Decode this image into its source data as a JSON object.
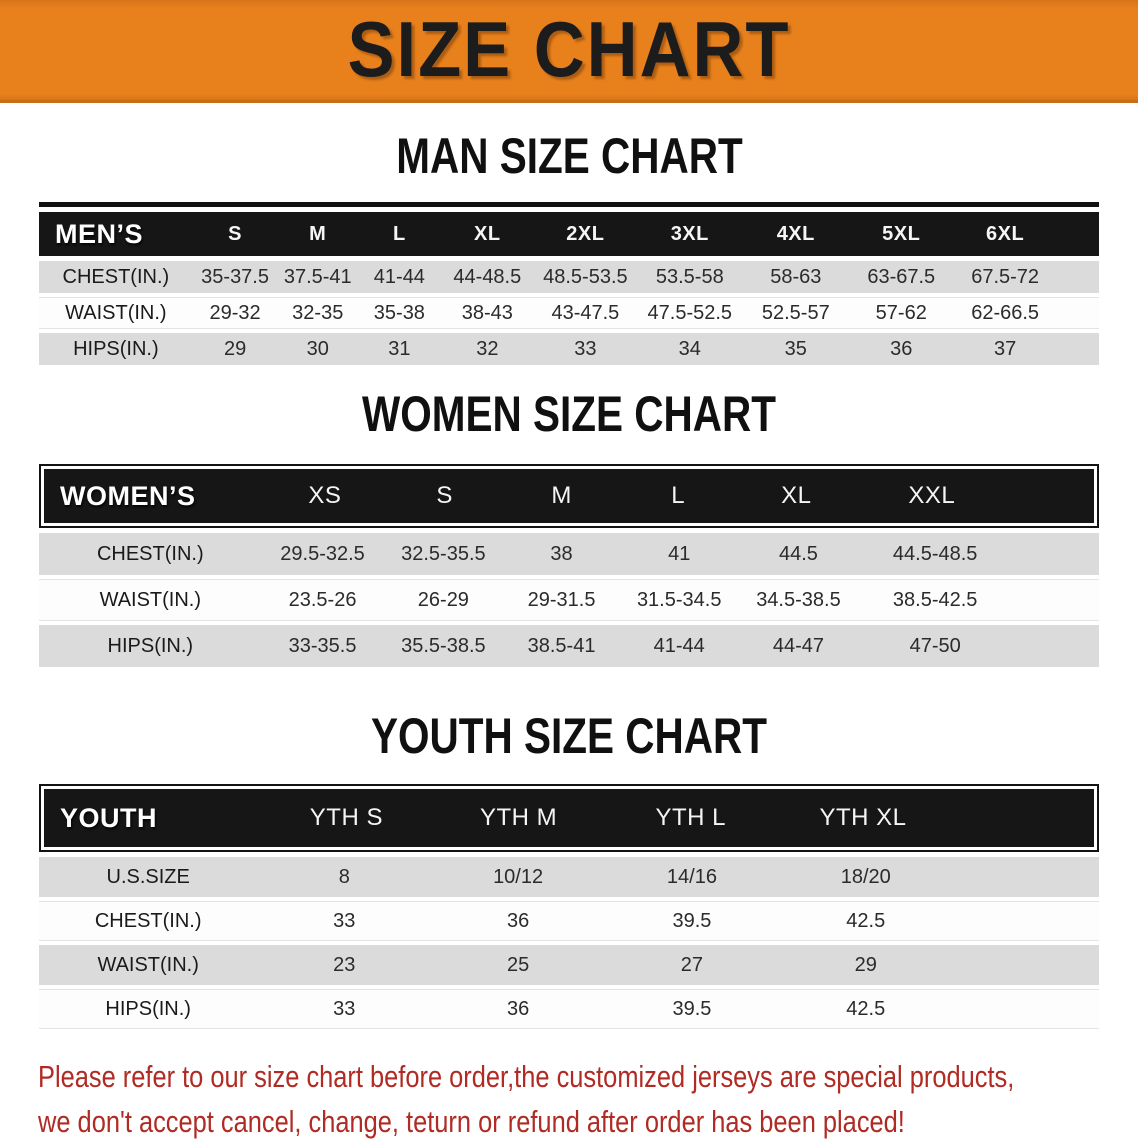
{
  "banner": {
    "title": "SIZE CHART"
  },
  "sections": {
    "man": {
      "heading": "MAN SIZE CHART"
    },
    "women": {
      "heading": "WOMEN SIZE CHART"
    },
    "youth": {
      "heading": "YOUTH SIZE CHART"
    }
  },
  "men_table": {
    "header": [
      "MEN’S",
      "S",
      "M",
      "L",
      "XL",
      "2XL",
      "3XL",
      "4XL",
      "5XL",
      "6XL"
    ],
    "chest": [
      "CHEST(IN.)",
      "35-37.5",
      "37.5-41",
      "41-44",
      "44-48.5",
      "48.5-53.5",
      "53.5-58",
      "58-63",
      "63-67.5",
      "67.5-72"
    ],
    "waist": [
      "WAIST(IN.)",
      "29-32",
      "32-35",
      "35-38",
      "38-43",
      "43-47.5",
      "47.5-52.5",
      "52.5-57",
      "57-62",
      "62-66.5"
    ],
    "hips": [
      "HIPS(IN.)",
      "29",
      "30",
      "31",
      "32",
      "33",
      "34",
      "35",
      "36",
      "37"
    ]
  },
  "women_table": {
    "header": [
      "WOMEN’S",
      "XS",
      "S",
      "M",
      "L",
      "XL",
      "XXL"
    ],
    "chest": [
      "CHEST(IN.)",
      "29.5-32.5",
      "32.5-35.5",
      "38",
      "41",
      "44.5",
      "44.5-48.5"
    ],
    "waist": [
      "WAIST(IN.)",
      "23.5-26",
      "26-29",
      "29-31.5",
      "31.5-34.5",
      "34.5-38.5",
      "38.5-42.5"
    ],
    "hips": [
      "HIPS(IN.)",
      "33-35.5",
      "35.5-38.5",
      "38.5-41",
      "41-44",
      "44-47",
      "47-50"
    ]
  },
  "youth_table": {
    "header": [
      "YOUTH",
      "YTH S",
      "YTH M",
      "YTH L",
      "YTH XL"
    ],
    "us_size": [
      "U.S.SIZE",
      "8",
      "10/12",
      "14/16",
      "18/20"
    ],
    "chest": [
      "CHEST(IN.)",
      "33",
      "36",
      "39.5",
      "42.5"
    ],
    "waist": [
      "WAIST(IN.)",
      "23",
      "25",
      "27",
      "29"
    ],
    "hips": [
      "HIPS(IN.)",
      "33",
      "36",
      "39.5",
      "42.5"
    ]
  },
  "footer": {
    "line1": "Please refer to our size chart before order,the customized jerseys are special products,",
    "line2": "we don't accept cancel, change, teturn or refund after order has been placed!"
  },
  "colors": {
    "banner_orange": "#E8811C",
    "header_black": "#161616",
    "row_gray": "#DBDBDB",
    "row_white": "#FDFDFD",
    "footer_red": "#B02B24"
  }
}
